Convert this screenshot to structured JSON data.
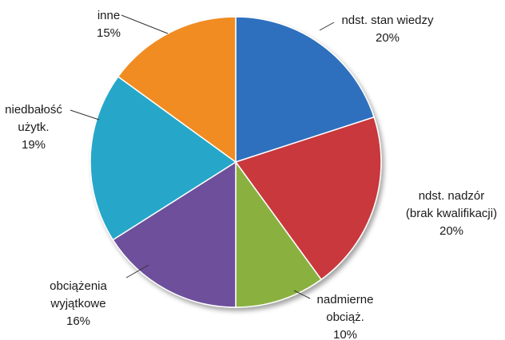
{
  "chart_data": {
    "type": "pie",
    "title": "",
    "slices": [
      {
        "label_lines": [
          "ndst. stan wiedzy"
        ],
        "pct_label": "20%",
        "value": 20,
        "color": "#2d6fbe"
      },
      {
        "label_lines": [
          "ndst. nadzór",
          "(brak kwalifikacji)"
        ],
        "pct_label": "20%",
        "value": 20,
        "color": "#c8393d"
      },
      {
        "label_lines": [
          "nadmierne",
          "obciąż."
        ],
        "pct_label": "10%",
        "value": 10,
        "color": "#8ab13f"
      },
      {
        "label_lines": [
          "obciążenia",
          "wyjątkowe"
        ],
        "pct_label": "16%",
        "value": 16,
        "color": "#6e4f9b"
      },
      {
        "label_lines": [
          "niedbałość",
          "użytk."
        ],
        "pct_label": "19%",
        "value": 19,
        "color": "#27a7c9"
      },
      {
        "label_lines": [
          "inne"
        ],
        "pct_label": "15%",
        "value": 15,
        "color": "#f08c24"
      }
    ]
  }
}
